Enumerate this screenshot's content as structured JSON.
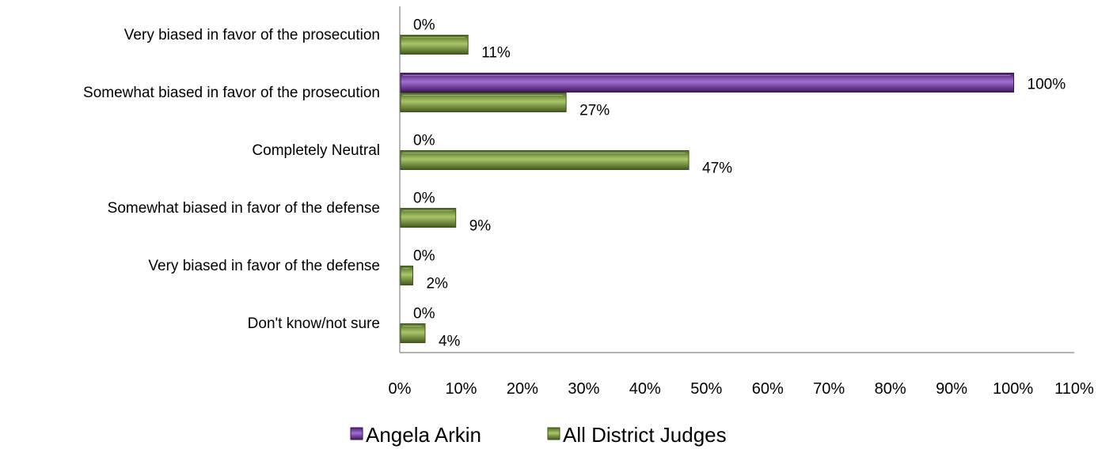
{
  "chart_data": {
    "type": "bar",
    "orientation": "horizontal",
    "title": "",
    "xlabel": "",
    "ylabel": "",
    "xlim": [
      0,
      110
    ],
    "x_ticks": [
      0,
      10,
      20,
      30,
      40,
      50,
      60,
      70,
      80,
      90,
      100,
      110
    ],
    "x_tick_suffix": "%",
    "grid": false,
    "legend_position": "bottom",
    "categories": [
      "Very biased in favor of the prosecution",
      "Somewhat biased in favor of the prosecution",
      "Completely Neutral",
      "Somewhat biased in favor of the defense",
      "Very biased in favor of the defense",
      "Don't know/not sure"
    ],
    "series": [
      {
        "name": "Angela Arkin",
        "color": "#7030a0",
        "values": [
          0,
          100,
          0,
          0,
          0,
          0
        ]
      },
      {
        "name": "All District Judges",
        "color": "#77933c",
        "values": [
          11,
          27,
          47,
          9,
          2,
          4
        ]
      }
    ]
  }
}
